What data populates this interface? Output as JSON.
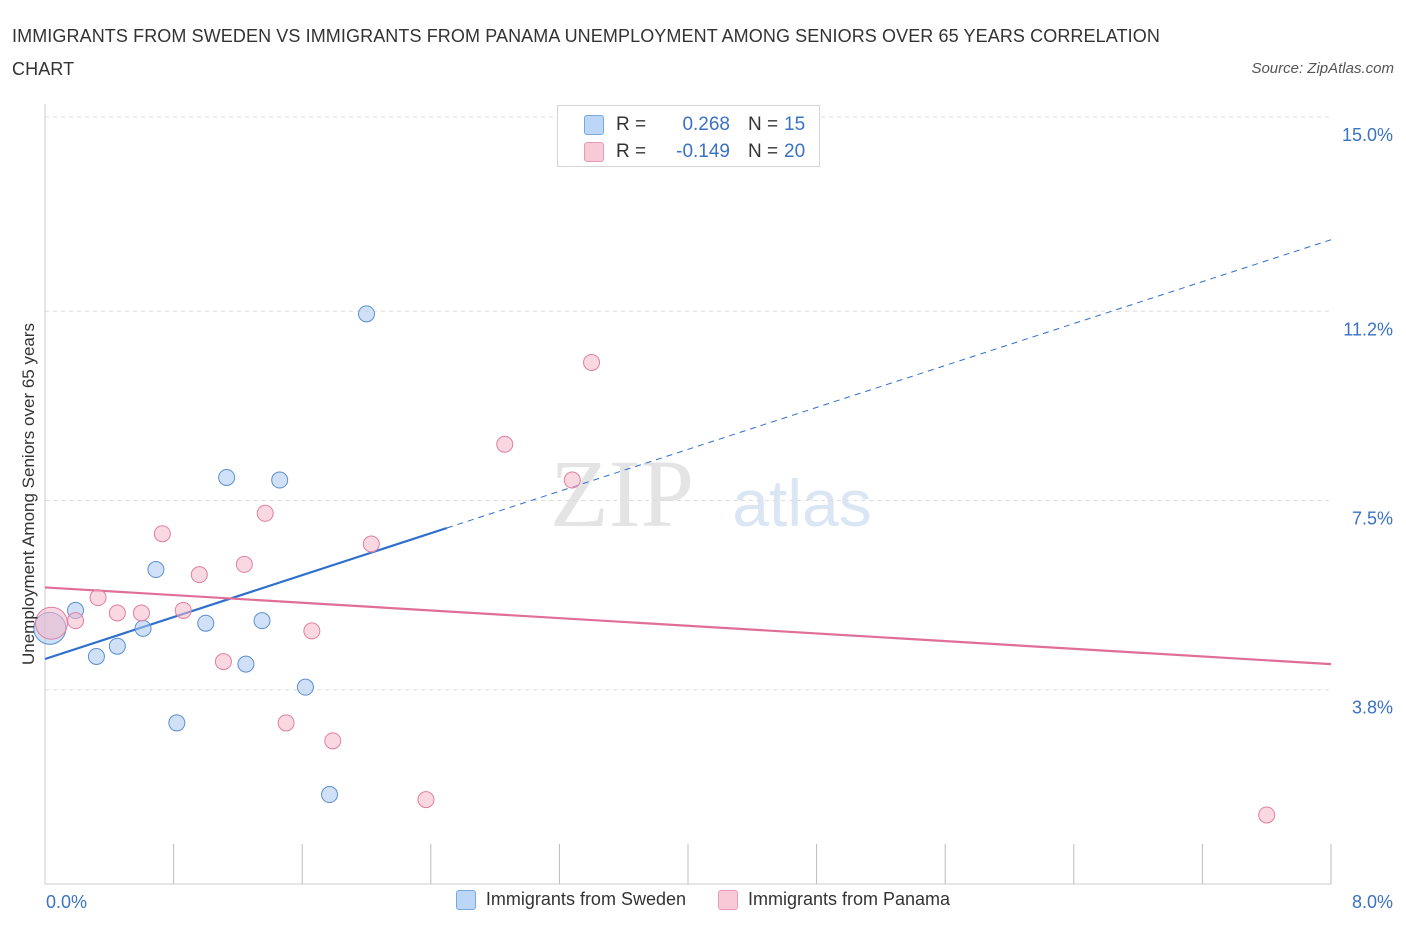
{
  "title": "IMMIGRANTS FROM SWEDEN VS IMMIGRANTS FROM PANAMA UNEMPLOYMENT AMONG SENIORS OVER 65 YEARS CORRELATION CHART",
  "source": "Source: ZipAtlas.com",
  "watermark": {
    "zip": "ZIP",
    "atlas": "atlas"
  },
  "stats": [
    {
      "r_label": "R =",
      "r_value": "0.268",
      "n_label": "N =",
      "n_value": "15",
      "color": "#a9c9f0"
    },
    {
      "r_label": "R =",
      "r_value": "-0.149",
      "n_label": "N =",
      "n_value": "20",
      "color": "#f5b8cb"
    }
  ],
  "chart_data": {
    "type": "scatter",
    "title": "IMMIGRANTS FROM SWEDEN VS IMMIGRANTS FROM PANAMA UNEMPLOYMENT AMONG SENIORS OVER 65 YEARS CORRELATION CHART",
    "xlabel": "",
    "ylabel": "Unemployment Among Seniors over 65 years",
    "xlim": [
      0,
      8.0
    ],
    "ylim": [
      0,
      15.0
    ],
    "x_tick_labels": [
      {
        "value": 0,
        "label": "0.0%"
      },
      {
        "value": 8.0,
        "label": "8.0%"
      }
    ],
    "y_tick_labels": [
      {
        "value": 3.8,
        "label": "3.8%"
      },
      {
        "value": 7.5,
        "label": "7.5%"
      },
      {
        "value": 11.2,
        "label": "11.2%"
      },
      {
        "value": 15.0,
        "label": "15.0%"
      }
    ],
    "x_minor_ticks": [
      0.8,
      1.6,
      2.4,
      3.2,
      4.0,
      4.8,
      5.6,
      6.4,
      7.2,
      8.0
    ],
    "y_gridlines": [
      3.8,
      7.5,
      11.2,
      15.0
    ],
    "grid": true,
    "legend_position": "bottom",
    "series": [
      {
        "name": "Immigrants from Sweden",
        "color": "#a9c9f0",
        "stroke": "#5b8fd1",
        "trend_color": "#2e6fce",
        "points": [
          {
            "x": 0.03,
            "y": 5.0,
            "size": "large"
          },
          {
            "x": 0.19,
            "y": 5.35
          },
          {
            "x": 0.32,
            "y": 4.45
          },
          {
            "x": 0.45,
            "y": 4.65
          },
          {
            "x": 0.61,
            "y": 5.0
          },
          {
            "x": 0.69,
            "y": 6.15
          },
          {
            "x": 0.82,
            "y": 3.15
          },
          {
            "x": 1.0,
            "y": 5.1
          },
          {
            "x": 1.13,
            "y": 7.95
          },
          {
            "x": 1.25,
            "y": 4.3
          },
          {
            "x": 1.35,
            "y": 5.15
          },
          {
            "x": 1.46,
            "y": 7.9
          },
          {
            "x": 1.62,
            "y": 3.85
          },
          {
            "x": 1.77,
            "y": 1.75
          },
          {
            "x": 2.0,
            "y": 11.15
          }
        ],
        "trend": {
          "x0": 0.0,
          "y0": 4.4,
          "x1": 8.0,
          "y1": 12.6,
          "solid_until_x": 2.5
        }
      },
      {
        "name": "Immigrants from Panama",
        "color": "#f5b8cb",
        "stroke": "#e07fa0",
        "trend_color": "#e06e98",
        "points": [
          {
            "x": 0.04,
            "y": 5.1,
            "size": "large"
          },
          {
            "x": 0.19,
            "y": 5.15
          },
          {
            "x": 0.33,
            "y": 5.6
          },
          {
            "x": 0.45,
            "y": 5.3
          },
          {
            "x": 0.6,
            "y": 5.3
          },
          {
            "x": 0.73,
            "y": 6.85
          },
          {
            "x": 0.86,
            "y": 5.35
          },
          {
            "x": 0.96,
            "y": 6.05
          },
          {
            "x": 1.11,
            "y": 4.35
          },
          {
            "x": 1.24,
            "y": 6.25
          },
          {
            "x": 1.37,
            "y": 7.25
          },
          {
            "x": 1.5,
            "y": 3.15
          },
          {
            "x": 1.66,
            "y": 4.95
          },
          {
            "x": 1.79,
            "y": 2.8
          },
          {
            "x": 2.03,
            "y": 6.65
          },
          {
            "x": 2.37,
            "y": 1.65
          },
          {
            "x": 2.86,
            "y": 8.6
          },
          {
            "x": 3.28,
            "y": 7.9
          },
          {
            "x": 3.4,
            "y": 10.2
          },
          {
            "x": 7.6,
            "y": 1.35
          }
        ],
        "trend": {
          "x0": 0.0,
          "y0": 5.8,
          "x1": 8.0,
          "y1": 4.3,
          "solid_until_x": 8.0
        }
      }
    ]
  }
}
